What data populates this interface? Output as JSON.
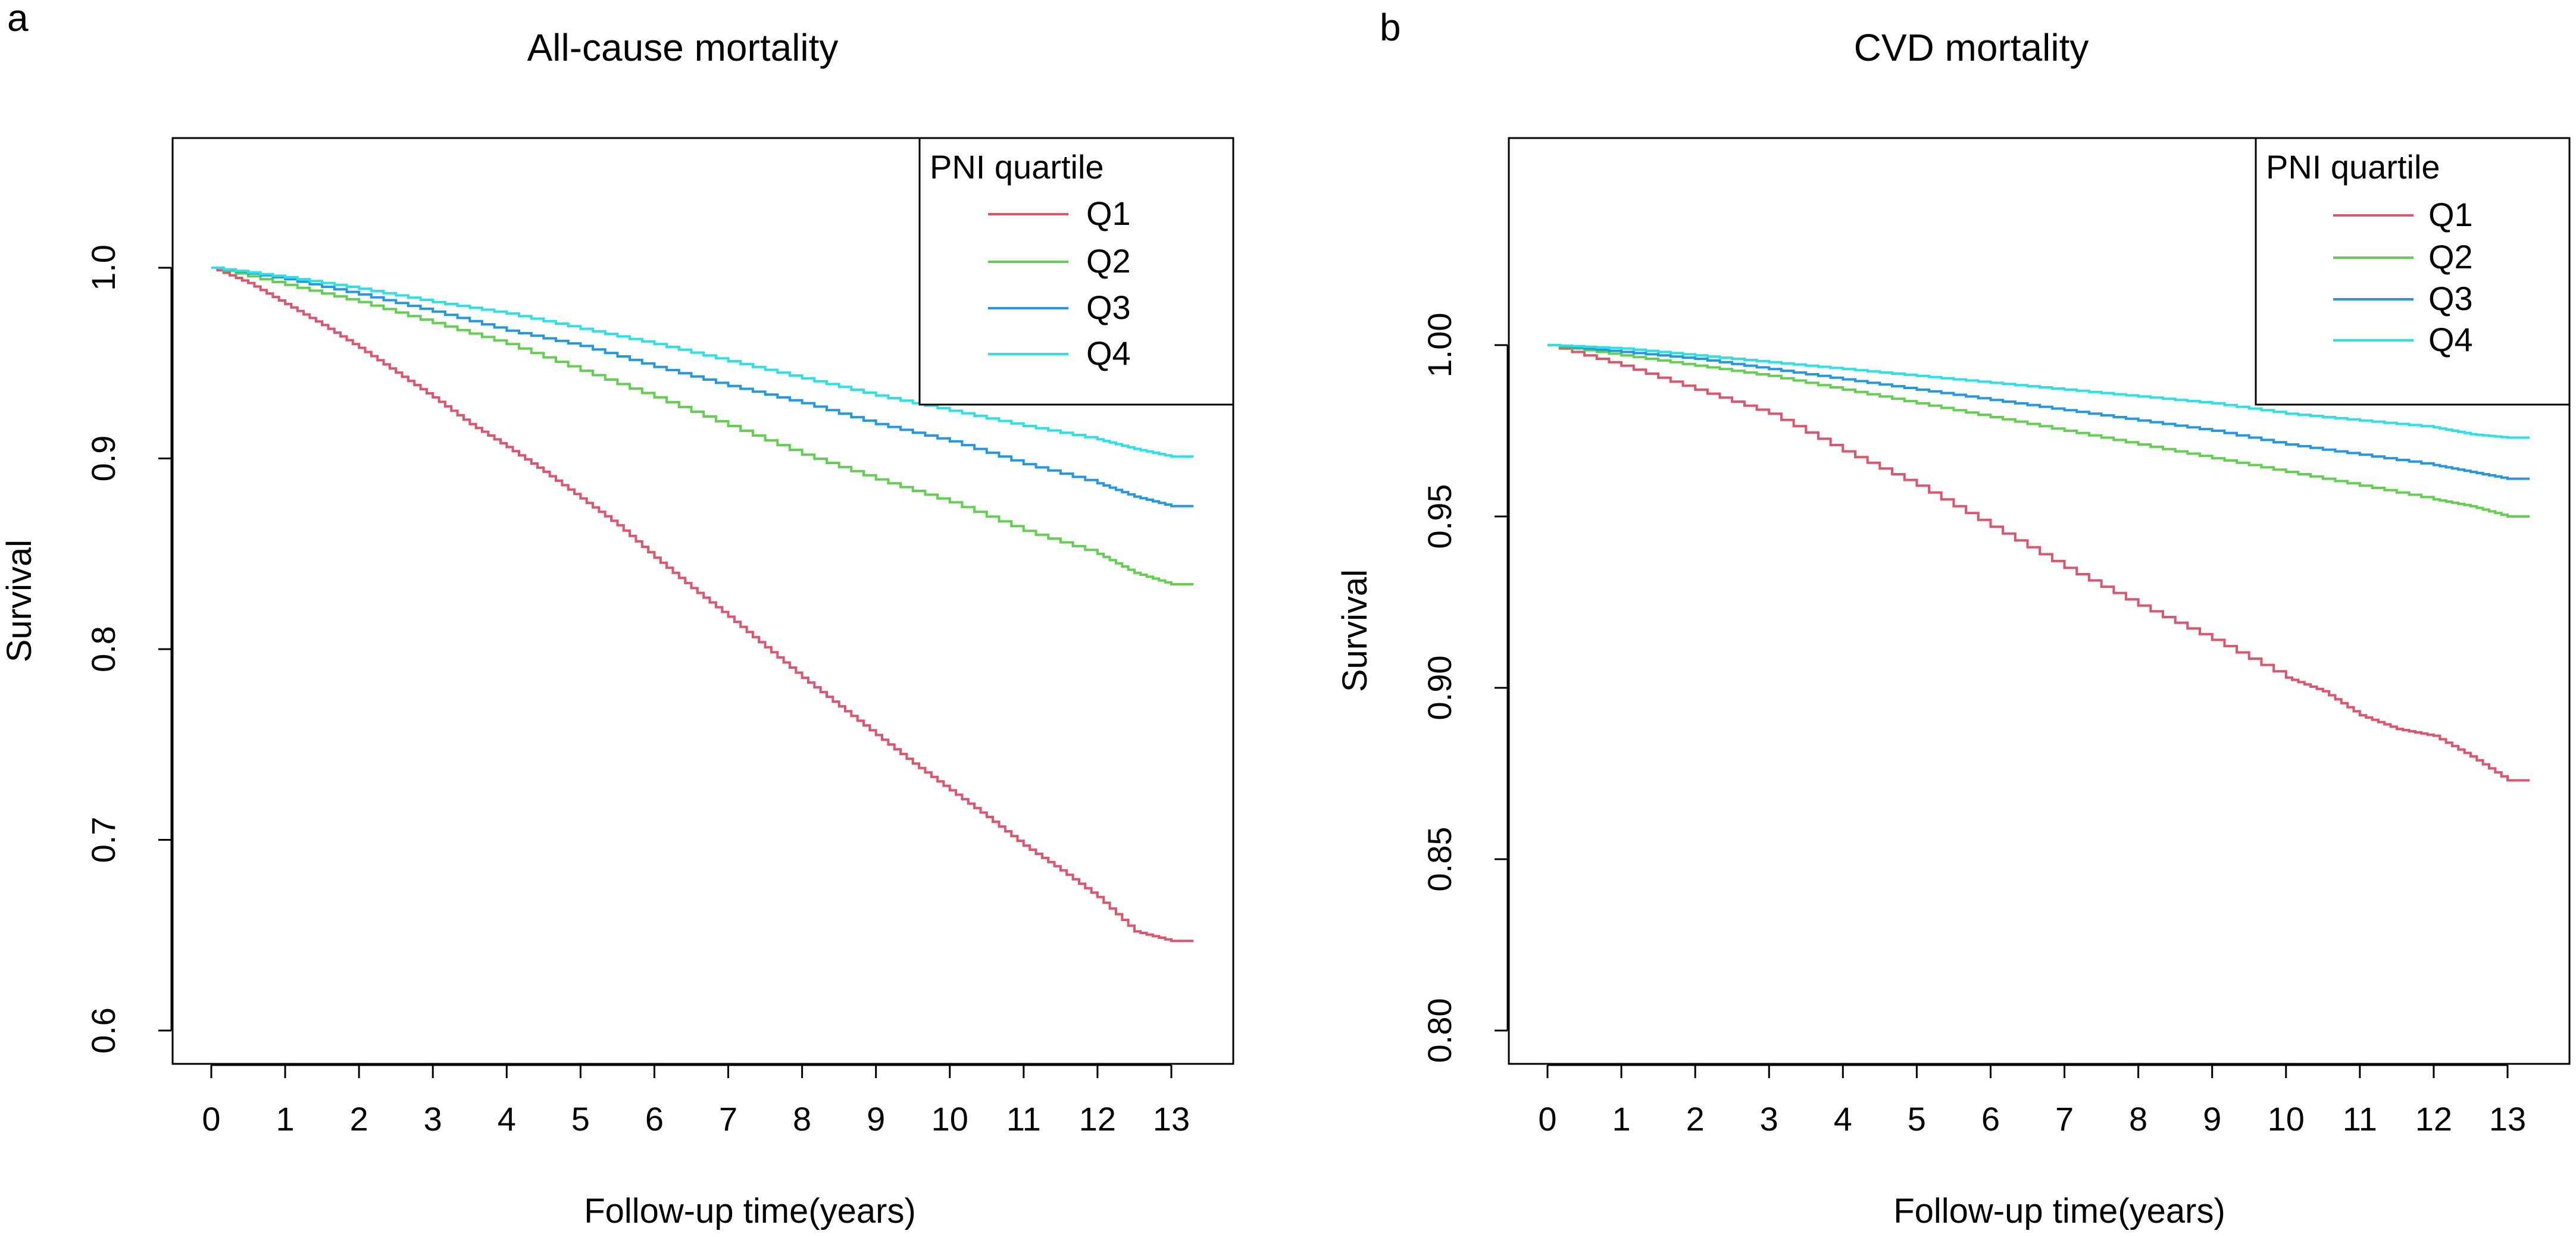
{
  "figure": {
    "colors": {
      "Q1": "#DF536B",
      "Q2": "#61D04F",
      "Q3": "#2297E6",
      "Q4": "#28E2E5"
    }
  },
  "chart_data": [
    {
      "panel_label": "a",
      "type": "line",
      "title": "All-cause mortality",
      "xlabel": "Follow-up time(years)",
      "ylabel": "Survival",
      "xlim": [
        0,
        13.3
      ],
      "ylim": [
        0.6,
        1.0
      ],
      "xticks": [
        "0",
        "1",
        "2",
        "3",
        "4",
        "5",
        "6",
        "7",
        "8",
        "9",
        "10",
        "11",
        "12",
        "13"
      ],
      "yticks": [
        "0.6",
        "0.7",
        "0.8",
        "0.9",
        "1.0"
      ],
      "ytick_values": [
        0.6,
        0.7,
        0.8,
        0.9,
        1.0
      ],
      "legend": {
        "title": "PNI quartile",
        "position": "top-right",
        "entries": [
          "Q1",
          "Q2",
          "Q3",
          "Q4"
        ]
      },
      "series": [
        {
          "name": "Q1",
          "x": [
            0,
            0.5,
            1,
            1.5,
            2,
            2.5,
            3,
            3.5,
            4,
            4.5,
            5,
            5.5,
            6,
            6.5,
            7,
            7.5,
            8,
            8.5,
            9,
            9.5,
            10,
            10.5,
            11,
            11.5,
            12,
            12.5,
            13,
            13.3
          ],
          "values": [
            1.0,
            0.992,
            0.981,
            0.97,
            0.958,
            0.945,
            0.932,
            0.918,
            0.906,
            0.893,
            0.879,
            0.865,
            0.848,
            0.832,
            0.817,
            0.801,
            0.785,
            0.77,
            0.755,
            0.74,
            0.726,
            0.712,
            0.697,
            0.684,
            0.67,
            0.652,
            0.647,
            0.647
          ]
        },
        {
          "name": "Q2",
          "x": [
            0,
            1,
            2,
            3,
            4,
            5,
            6,
            7,
            8,
            9,
            10,
            11,
            12,
            12.5,
            13,
            13.3
          ],
          "values": [
            1.0,
            0.991,
            0.982,
            0.971,
            0.96,
            0.946,
            0.932,
            0.917,
            0.902,
            0.889,
            0.877,
            0.862,
            0.85,
            0.84,
            0.834,
            0.834
          ]
        },
        {
          "name": "Q3",
          "x": [
            0,
            1,
            2,
            3,
            4,
            5,
            6,
            7,
            8,
            9,
            10,
            11,
            12,
            12.5,
            13,
            13.3
          ],
          "values": [
            1.0,
            0.994,
            0.986,
            0.977,
            0.967,
            0.959,
            0.948,
            0.938,
            0.929,
            0.918,
            0.909,
            0.897,
            0.887,
            0.88,
            0.875,
            0.875
          ]
        },
        {
          "name": "Q4",
          "x": [
            0,
            1,
            2,
            3,
            4,
            5,
            6,
            7,
            8,
            9,
            10,
            11,
            12,
            12.5,
            13,
            13.3
          ],
          "values": [
            1.0,
            0.995,
            0.989,
            0.982,
            0.976,
            0.968,
            0.96,
            0.951,
            0.942,
            0.933,
            0.925,
            0.917,
            0.91,
            0.905,
            0.901,
            0.901
          ]
        }
      ]
    },
    {
      "panel_label": "b",
      "type": "line",
      "title": "CVD mortality",
      "xlabel": "Follow-up time(years)",
      "ylabel": "Survival",
      "xlim": [
        0,
        13.3
      ],
      "ylim": [
        0.8,
        1.0
      ],
      "xticks": [
        "0",
        "1",
        "2",
        "3",
        "4",
        "5",
        "6",
        "7",
        "8",
        "9",
        "10",
        "11",
        "12",
        "13"
      ],
      "yticks": [
        "0.80",
        "0.85",
        "0.90",
        "0.95",
        "1.00"
      ],
      "ytick_values": [
        0.8,
        0.85,
        0.9,
        0.95,
        1.0
      ],
      "legend": {
        "title": "PNI quartile",
        "position": "top-right",
        "entries": [
          "Q1",
          "Q2",
          "Q3",
          "Q4"
        ]
      },
      "series": [
        {
          "name": "Q1",
          "x": [
            0,
            1,
            2,
            3,
            4,
            5,
            6,
            7,
            8,
            9,
            10,
            10.5,
            11,
            11.5,
            12,
            12.5,
            13,
            13.3
          ],
          "values": [
            1.0,
            0.994,
            0.987,
            0.98,
            0.969,
            0.959,
            0.947,
            0.935,
            0.924,
            0.914,
            0.903,
            0.899,
            0.892,
            0.888,
            0.886,
            0.88,
            0.873,
            0.873
          ]
        },
        {
          "name": "Q2",
          "x": [
            0,
            1,
            2,
            3,
            4,
            5,
            6,
            7,
            8,
            9,
            10,
            11,
            12,
            12.5,
            13,
            13.3
          ],
          "values": [
            1.0,
            0.997,
            0.994,
            0.991,
            0.987,
            0.983,
            0.979,
            0.975,
            0.971,
            0.967,
            0.963,
            0.959,
            0.955,
            0.953,
            0.95,
            0.95
          ]
        },
        {
          "name": "Q3",
          "x": [
            0,
            1,
            2,
            3,
            4,
            5,
            6,
            7,
            8,
            9,
            10,
            11,
            12,
            12.5,
            13,
            13.3
          ],
          "values": [
            1.0,
            0.998,
            0.996,
            0.993,
            0.99,
            0.987,
            0.984,
            0.981,
            0.978,
            0.975,
            0.971,
            0.968,
            0.965,
            0.963,
            0.961,
            0.961
          ]
        },
        {
          "name": "Q4",
          "x": [
            0,
            1,
            2,
            3,
            4,
            5,
            6,
            7,
            8,
            9,
            10,
            11,
            12,
            12.5,
            13,
            13.3
          ],
          "values": [
            1.0,
            0.999,
            0.997,
            0.995,
            0.993,
            0.991,
            0.989,
            0.987,
            0.985,
            0.983,
            0.98,
            0.978,
            0.976,
            0.974,
            0.973,
            0.973
          ]
        }
      ]
    }
  ]
}
